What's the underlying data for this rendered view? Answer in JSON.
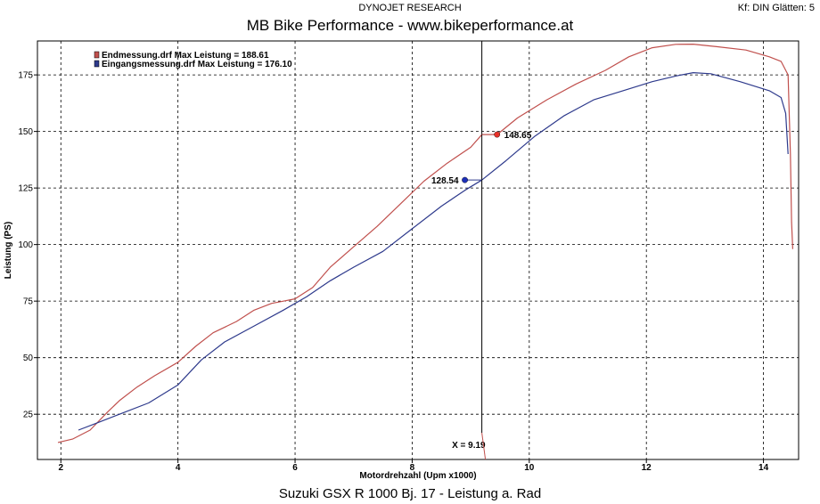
{
  "header": {
    "super_title": "DYNOJET RESEARCH",
    "title": "MB Bike Performance - www.bikeperformance.at",
    "status": "Kf: DIN  Glätten: 5"
  },
  "caption": "Suzuki GSX R 1000 Bj. 17 - Leistung a. Rad",
  "colors": {
    "red_series": "#c0504d",
    "blue_series": "#2e3a8c",
    "cursor": "#000000"
  },
  "chart_data": {
    "type": "line",
    "xlabel": "Motordrehzahl (Upm x1000)",
    "ylabel": "Leistung (PS)",
    "xlim": [
      1.6,
      14.6
    ],
    "ylim": [
      5,
      190
    ],
    "x_ticks": [
      2,
      4,
      6,
      8,
      10,
      12,
      14
    ],
    "y_ticks": [
      25,
      50,
      75,
      100,
      125,
      150,
      175
    ],
    "grid": true,
    "legend_position": "top-left",
    "legend": [
      "Endmessung.drf Max Leistung = 188.61",
      "Eingangsmessung.drf Max Leistung = 176.10"
    ],
    "cursor": {
      "x": 9.19,
      "label": "X = 9.19"
    },
    "markers": [
      {
        "series": 0,
        "x": 9.45,
        "y": 148.65,
        "label": "148.65"
      },
      {
        "series": 1,
        "x": 8.9,
        "y": 128.54,
        "label": "128.54"
      }
    ],
    "series": [
      {
        "name": "Endmessung.drf",
        "color": "#c0504d",
        "points": [
          [
            1.95,
            12.5
          ],
          [
            2.2,
            14
          ],
          [
            2.5,
            18
          ],
          [
            2.8,
            26
          ],
          [
            3.0,
            31
          ],
          [
            3.3,
            37
          ],
          [
            3.6,
            42
          ],
          [
            4.0,
            48
          ],
          [
            4.3,
            55
          ],
          [
            4.6,
            61
          ],
          [
            5.0,
            66
          ],
          [
            5.3,
            71
          ],
          [
            5.6,
            74
          ],
          [
            5.8,
            75
          ],
          [
            6.0,
            76
          ],
          [
            6.3,
            81
          ],
          [
            6.6,
            90
          ],
          [
            7.0,
            99
          ],
          [
            7.4,
            108
          ],
          [
            7.8,
            118
          ],
          [
            8.2,
            128
          ],
          [
            8.6,
            136
          ],
          [
            9.0,
            143
          ],
          [
            9.19,
            148.6
          ],
          [
            9.45,
            148.65
          ],
          [
            9.8,
            156
          ],
          [
            10.3,
            164
          ],
          [
            10.8,
            171
          ],
          [
            11.3,
            177
          ],
          [
            11.7,
            183
          ],
          [
            12.1,
            187
          ],
          [
            12.5,
            188.5
          ],
          [
            12.8,
            188.6
          ],
          [
            13.2,
            187.5
          ],
          [
            13.7,
            186
          ],
          [
            14.1,
            183
          ],
          [
            14.3,
            181
          ],
          [
            14.42,
            175
          ],
          [
            14.46,
            140
          ],
          [
            14.48,
            110
          ],
          [
            14.5,
            98
          ]
        ]
      },
      {
        "name": "Eingangsmessung.drf",
        "color": "#2e3a8c",
        "points": [
          [
            2.3,
            18
          ],
          [
            2.6,
            21
          ],
          [
            3.0,
            25
          ],
          [
            3.5,
            30
          ],
          [
            4.0,
            38
          ],
          [
            4.4,
            49
          ],
          [
            4.8,
            57
          ],
          [
            5.3,
            64
          ],
          [
            5.8,
            71
          ],
          [
            6.2,
            77
          ],
          [
            6.6,
            84
          ],
          [
            7.0,
            90
          ],
          [
            7.5,
            97
          ],
          [
            8.0,
            107
          ],
          [
            8.5,
            117
          ],
          [
            8.9,
            124
          ],
          [
            9.19,
            128.5
          ],
          [
            9.6,
            137
          ],
          [
            10.1,
            148
          ],
          [
            10.6,
            157
          ],
          [
            11.1,
            164
          ],
          [
            11.6,
            168
          ],
          [
            12.1,
            172
          ],
          [
            12.5,
            174.5
          ],
          [
            12.8,
            176
          ],
          [
            13.1,
            175.5
          ],
          [
            13.6,
            172
          ],
          [
            14.1,
            168
          ],
          [
            14.3,
            165
          ],
          [
            14.38,
            158
          ],
          [
            14.42,
            140
          ]
        ]
      }
    ]
  }
}
